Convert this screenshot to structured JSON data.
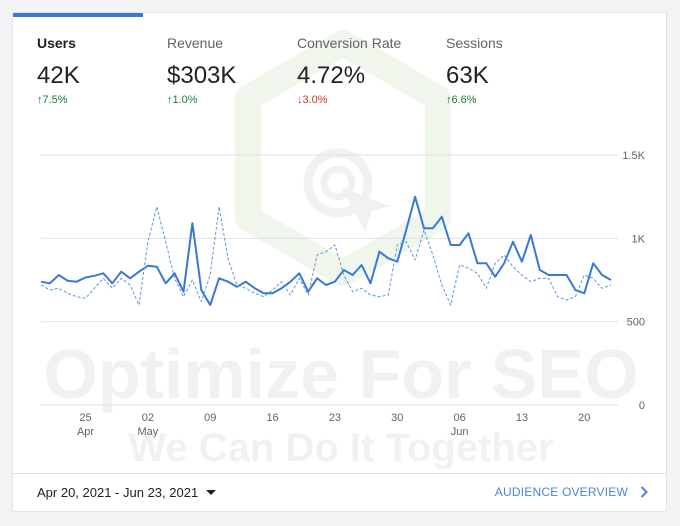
{
  "metrics": [
    {
      "label": "Users",
      "value": "42K",
      "change": "7.5%",
      "direction": "up"
    },
    {
      "label": "Revenue",
      "value": "$303K",
      "change": "1.0%",
      "direction": "up"
    },
    {
      "label": "Conversion Rate",
      "value": "4.72%",
      "change": "3.0%",
      "direction": "down"
    },
    {
      "label": "Sessions",
      "value": "63K",
      "change": "6.6%",
      "direction": "up"
    }
  ],
  "footer": {
    "date_range": "Apr 20, 2021 - Jun 23, 2021",
    "audience_link": "AUDIENCE OVERVIEW"
  },
  "watermark": {
    "title": "Optimize For SEO",
    "subtitle": "We Can Do It Together"
  },
  "colors": {
    "primary_line": "#3a78d6",
    "comparison_line": "#5b93e0",
    "grid": "#e0e0e0",
    "up": "#188038",
    "down": "#d93025"
  },
  "chart_data": {
    "type": "line",
    "title": "",
    "xlabel": "",
    "ylabel": "",
    "ylim": [
      0,
      1500
    ],
    "y_ticks": [
      "0",
      "500",
      "1K",
      "1.5K"
    ],
    "y_tick_values": [
      0,
      500,
      1000,
      1500
    ],
    "x_ticks": [
      {
        "day": 5,
        "label": "25",
        "sub": "Apr"
      },
      {
        "day": 12,
        "label": "02",
        "sub": "May"
      },
      {
        "day": 19,
        "label": "09",
        "sub": ""
      },
      {
        "day": 26,
        "label": "16",
        "sub": ""
      },
      {
        "day": 33,
        "label": "23",
        "sub": ""
      },
      {
        "day": 40,
        "label": "30",
        "sub": ""
      },
      {
        "day": 47,
        "label": "06",
        "sub": "Jun"
      },
      {
        "day": 54,
        "label": "13",
        "sub": ""
      },
      {
        "day": 61,
        "label": "20",
        "sub": ""
      }
    ],
    "x_days": 65,
    "series": [
      {
        "name": "Users",
        "style": "solid",
        "values": [
          740,
          730,
          780,
          745,
          740,
          765,
          775,
          790,
          730,
          800,
          760,
          800,
          835,
          830,
          730,
          790,
          680,
          1090,
          690,
          600,
          760,
          740,
          710,
          740,
          700,
          670,
          670,
          700,
          740,
          790,
          680,
          760,
          720,
          740,
          810,
          780,
          840,
          730,
          920,
          880,
          860,
          1050,
          1250,
          1060,
          1060,
          1130,
          960,
          960,
          1030,
          850,
          850,
          770,
          850,
          980,
          860,
          1020,
          810,
          780,
          780,
          780,
          690,
          670,
          850,
          780,
          750
        ]
      },
      {
        "name": "Users (previous period)",
        "style": "dashed",
        "values": [
          720,
          690,
          700,
          670,
          650,
          640,
          700,
          760,
          700,
          760,
          720,
          600,
          980,
          1190,
          980,
          760,
          650,
          750,
          620,
          780,
          1190,
          880,
          720,
          700,
          670,
          650,
          690,
          740,
          660,
          760,
          660,
          900,
          920,
          960,
          780,
          680,
          700,
          660,
          650,
          660,
          960,
          980,
          870,
          1050,
          900,
          720,
          600,
          840,
          820,
          790,
          700,
          850,
          900,
          830,
          780,
          740,
          760,
          760,
          650,
          630,
          650,
          780,
          760,
          700,
          720
        ]
      }
    ]
  }
}
